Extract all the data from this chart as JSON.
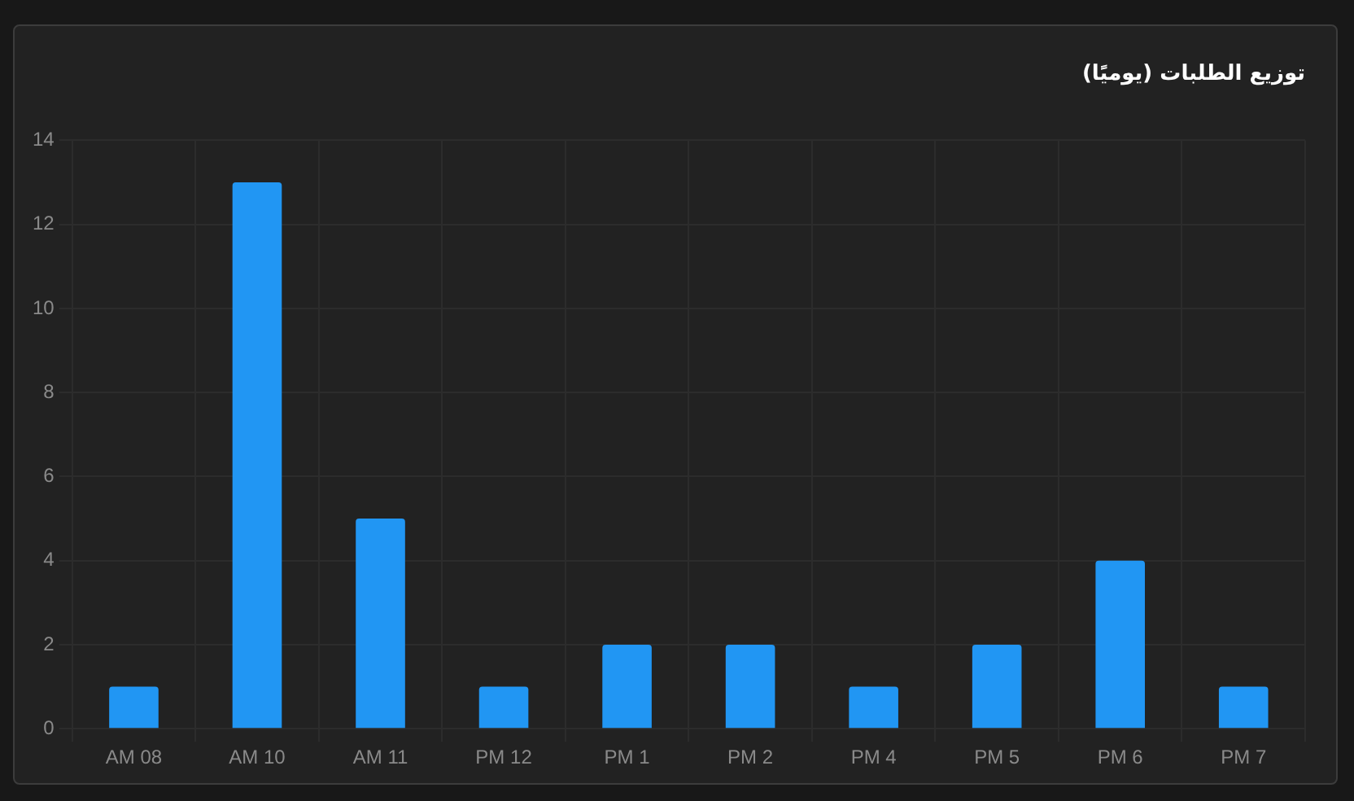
{
  "chart_data": {
    "type": "bar",
    "title": "توزيع الطلبات (يوميًا)",
    "categories": [
      "AM 08",
      "AM 10",
      "AM 11",
      "PM 12",
      "PM 1",
      "PM 2",
      "PM 4",
      "PM 5",
      "PM 6",
      "PM 7"
    ],
    "values": [
      1,
      13,
      5,
      1,
      2,
      2,
      1,
      2,
      4,
      1
    ],
    "color": "#2196f3",
    "ylim": [
      0,
      14
    ],
    "yticks": [
      0,
      2,
      4,
      6,
      8,
      10,
      12,
      14
    ],
    "grid": true,
    "legend": false
  }
}
